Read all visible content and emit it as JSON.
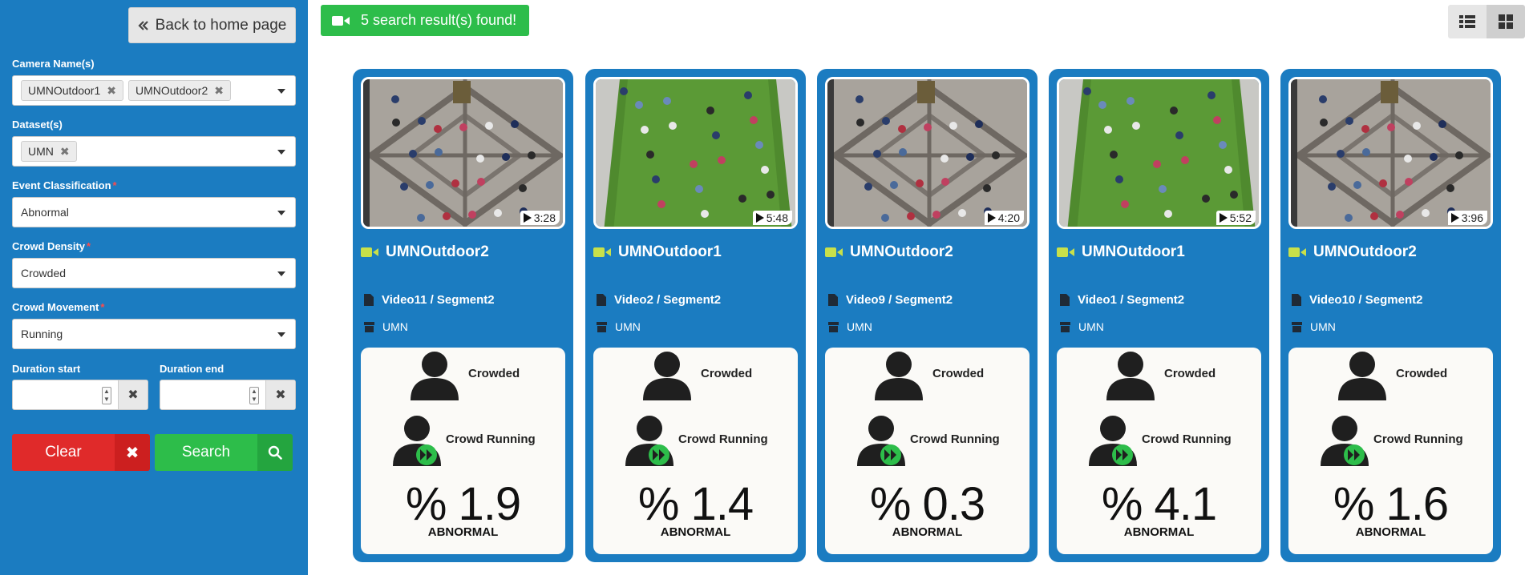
{
  "sidebar": {
    "back_label": "Back to home page",
    "camera_label": "Camera Name(s)",
    "camera_tags": [
      "UMNOutdoor1",
      "UMNOutdoor2"
    ],
    "dataset_label": "Dataset(s)",
    "dataset_tags": [
      "UMN"
    ],
    "event_label": "Event Classification",
    "event_value": "Abnormal",
    "density_label": "Crowd Density",
    "density_value": "Crowded",
    "movement_label": "Crowd Movement",
    "movement_value": "Running",
    "duration_start_label": "Duration start",
    "duration_end_label": "Duration end",
    "clear_label": "Clear",
    "search_label": "Search"
  },
  "results": {
    "banner": "5 search result(s) found!"
  },
  "cards": [
    {
      "duration": "3:28",
      "camera": "UMNOutdoor2",
      "video": "Video11 / Segment2",
      "dataset": "UMN",
      "density": "Crowded",
      "movement": "Crowd Running",
      "percent": "% 1.9",
      "status": "ABNORMAL",
      "scene": "plaza"
    },
    {
      "duration": "5:48",
      "camera": "UMNOutdoor1",
      "video": "Video2 / Segment2",
      "dataset": "UMN",
      "density": "Crowded",
      "movement": "Crowd Running",
      "percent": "% 1.4",
      "status": "ABNORMAL",
      "scene": "lawn"
    },
    {
      "duration": "4:20",
      "camera": "UMNOutdoor2",
      "video": "Video9 / Segment2",
      "dataset": "UMN",
      "density": "Crowded",
      "movement": "Crowd Running",
      "percent": "% 0.3",
      "status": "ABNORMAL",
      "scene": "plaza"
    },
    {
      "duration": "5:52",
      "camera": "UMNOutdoor1",
      "video": "Video1 / Segment2",
      "dataset": "UMN",
      "density": "Crowded",
      "movement": "Crowd Running",
      "percent": "% 4.1",
      "status": "ABNORMAL",
      "scene": "lawn"
    },
    {
      "duration": "3:96",
      "camera": "UMNOutdoor2",
      "video": "Video10 / Segment2",
      "dataset": "UMN",
      "density": "Crowded",
      "movement": "Crowd Running",
      "percent": "% 1.6",
      "status": "ABNORMAL",
      "scene": "plaza"
    }
  ],
  "colors": {
    "panel": "#1b7cc1",
    "success": "#2dbd4a",
    "danger": "#e02a2a",
    "camera_icon": "#c8e04a"
  }
}
